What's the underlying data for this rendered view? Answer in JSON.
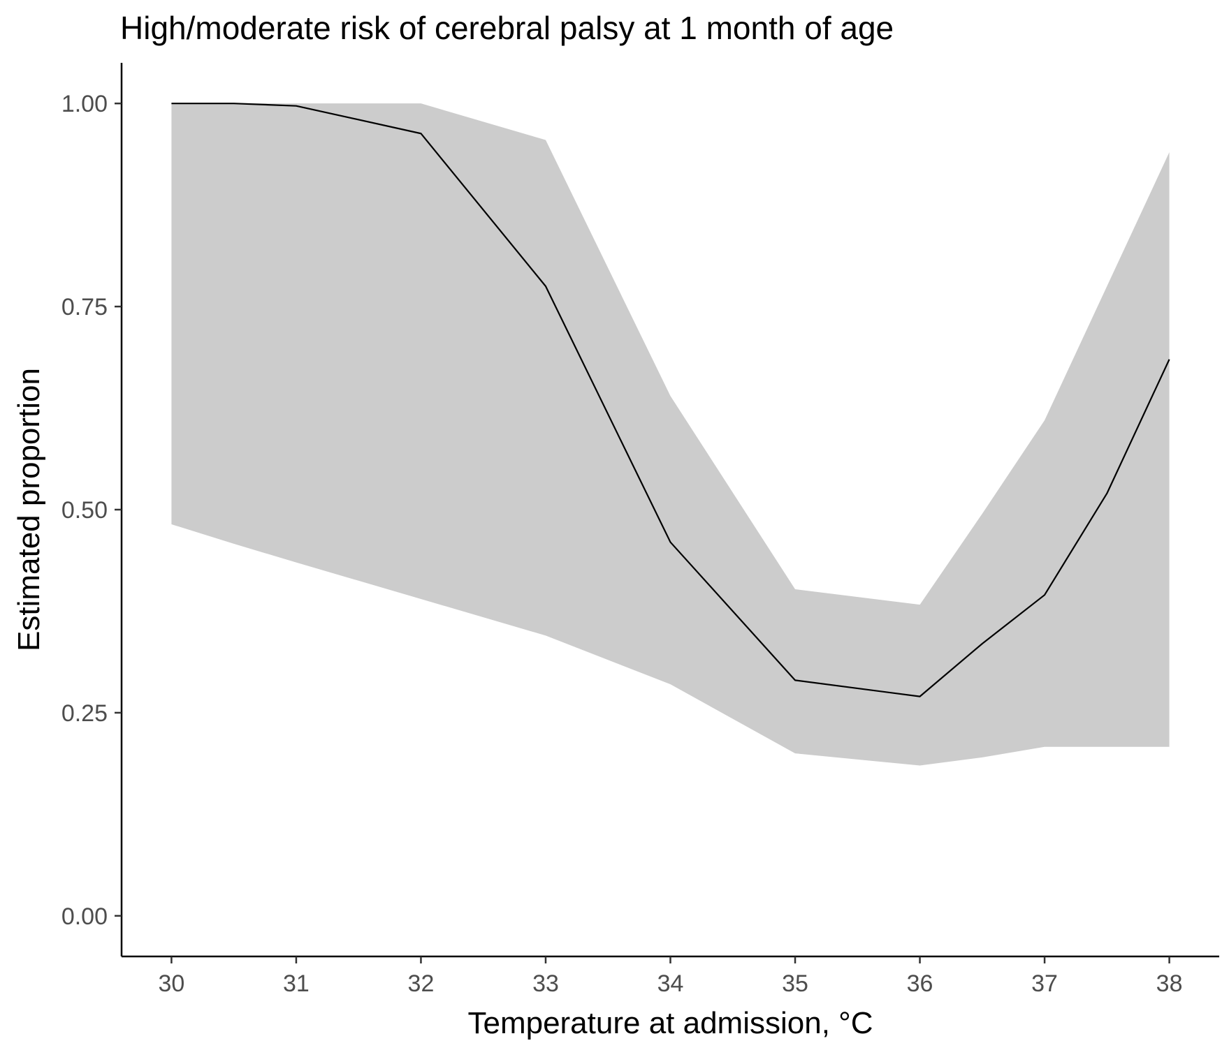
{
  "chart_data": {
    "type": "line",
    "title": "High/moderate risk of cerebral palsy at 1 month of age",
    "xlabel": "Temperature at admission, °C",
    "ylabel": "Estimated proportion",
    "xlim": [
      29.6,
      38.4
    ],
    "ylim": [
      -0.05,
      1.05
    ],
    "x_ticks": [
      30,
      31,
      32,
      33,
      34,
      35,
      36,
      37,
      38
    ],
    "x_tick_labels": [
      "30",
      "31",
      "32",
      "33",
      "34",
      "35",
      "36",
      "37",
      "38"
    ],
    "y_ticks": [
      0,
      0.25,
      0.5,
      0.75,
      1.0
    ],
    "y_tick_labels": [
      "0.00",
      "0.25",
      "0.50",
      "0.75",
      "1.00"
    ],
    "grid": false,
    "series": [
      {
        "name": "Estimated proportion",
        "x": [
          30,
          30.5,
          31,
          32,
          33,
          34,
          35,
          36,
          36.5,
          37,
          37.5,
          38
        ],
        "y": [
          1.0,
          1.0,
          0.997,
          0.963,
          0.775,
          0.46,
          0.29,
          0.27,
          0.335,
          0.395,
          0.52,
          0.685
        ],
        "lower": [
          0.482,
          0.458,
          0.435,
          0.39,
          0.345,
          0.285,
          0.2,
          0.185,
          0.195,
          0.208,
          0.208,
          0.208
        ],
        "upper": [
          1.0,
          1.0,
          1.0,
          1.0,
          0.955,
          0.64,
          0.402,
          0.383,
          0.495,
          0.61,
          0.775,
          0.94
        ]
      }
    ],
    "colors": {
      "line": "#000000",
      "ribbon": "#cccccc",
      "axis": "#000000",
      "tick_text": "#4d4d4d"
    }
  }
}
